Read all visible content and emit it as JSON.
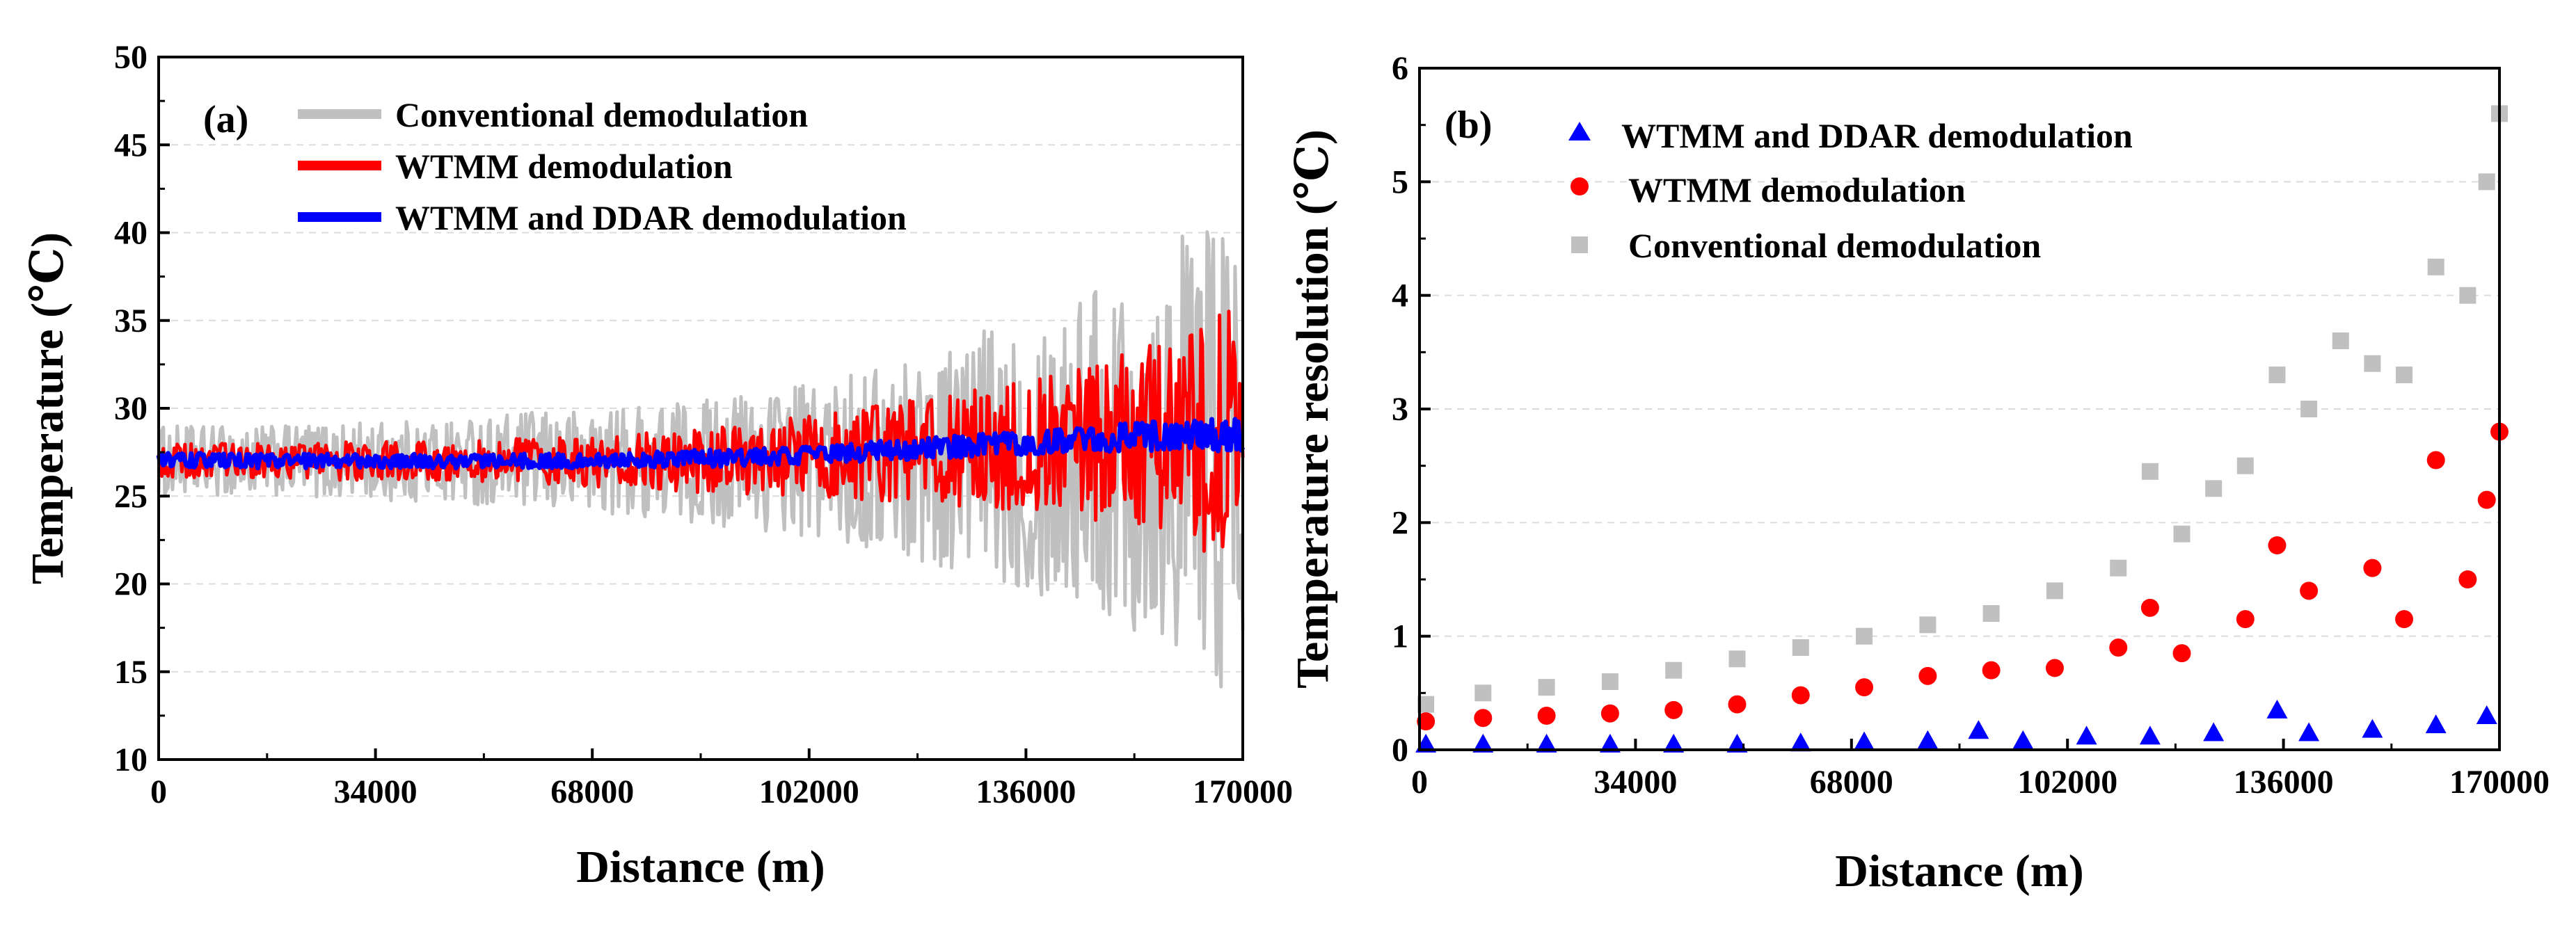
{
  "chart_data": [
    {
      "type": "line",
      "panel_label": "(a)",
      "xlabel": "Distance (m)",
      "ylabel": "Temperature (℃)",
      "xlim": [
        0,
        170000
      ],
      "ylim": [
        10,
        50
      ],
      "x_ticks": [
        "0",
        "34000",
        "68000",
        "102000",
        "136000",
        "170000"
      ],
      "y_ticks": [
        "10",
        "15",
        "20",
        "25",
        "30",
        "35",
        "40",
        "45",
        "50"
      ],
      "x": [
        0,
        10000,
        20000,
        30000,
        40000,
        50000,
        60000,
        70000,
        80000,
        90000,
        100000,
        110000,
        120000,
        130000,
        140000,
        150000,
        160000,
        170000
      ],
      "series": [
        {
          "name": "Conventional demodulation",
          "color": "#c0c0c0",
          "mean": [
            27,
            27,
            27,
            27,
            27,
            27,
            27,
            27,
            27,
            27,
            27,
            27,
            27.2,
            27.5,
            27.6,
            27.8,
            28,
            28
          ],
          "half_range": [
            2,
            2,
            2,
            2.2,
            2.3,
            2.5,
            2.8,
            3,
            3.4,
            3.8,
            4.3,
            5,
            6,
            7.2,
            8.5,
            10,
            12,
            15
          ]
        },
        {
          "name": "WTMM  demodulation",
          "color": "#ff0000",
          "mean": [
            27,
            27,
            27,
            27,
            27,
            27,
            27,
            27,
            27,
            27,
            27.2,
            27.4,
            27.6,
            27.8,
            28,
            28,
            28.3,
            28.5
          ],
          "half_range": [
            1,
            1,
            1,
            1.1,
            1.1,
            1.2,
            1.3,
            1.5,
            1.7,
            2,
            2.3,
            2.6,
            3,
            3.5,
            4,
            5,
            6,
            7.5
          ]
        },
        {
          "name": "WTMM and DDAR demodulation",
          "color": "#0000ff",
          "mean": [
            27.1,
            27,
            27,
            27,
            27,
            27,
            27,
            27,
            27.1,
            27.2,
            27.3,
            27.5,
            27.7,
            27.9,
            28.1,
            28.3,
            28.5,
            28.5
          ],
          "half_range": [
            0.4,
            0.4,
            0.4,
            0.4,
            0.4,
            0.4,
            0.4,
            0.4,
            0.45,
            0.5,
            0.5,
            0.55,
            0.6,
            0.65,
            0.7,
            0.8,
            0.9,
            1
          ]
        }
      ]
    },
    {
      "type": "scatter",
      "panel_label": "(b)",
      "xlabel": "Distance (m)",
      "ylabel": "Temperature resolution (℃)",
      "xlim": [
        0,
        170000
      ],
      "ylim": [
        0,
        6
      ],
      "x_ticks": [
        "0",
        "34000",
        "68000",
        "102000",
        "136000",
        "170000"
      ],
      "y_ticks": [
        "0",
        "1",
        "2",
        "3",
        "4",
        "5",
        "6"
      ],
      "series": [
        {
          "name": "WTMM and DDAR demodulation",
          "color": "#0000ff",
          "marker": "triangle",
          "x": [
            1000,
            10000,
            20000,
            30000,
            40000,
            50000,
            60000,
            70000,
            80000,
            88000,
            95000,
            105000,
            115000,
            125000,
            135000,
            140000,
            150000,
            160000,
            168000
          ],
          "y": [
            0.05,
            0.05,
            0.05,
            0.05,
            0.05,
            0.05,
            0.06,
            0.07,
            0.08,
            0.17,
            0.08,
            0.12,
            0.12,
            0.15,
            0.35,
            0.15,
            0.18,
            0.22,
            0.3
          ]
        },
        {
          "name": "WTMM  demodulation",
          "color": "#ff0000",
          "marker": "circle",
          "x": [
            1000,
            10000,
            20000,
            30000,
            40000,
            50000,
            60000,
            70000,
            80000,
            90000,
            100000,
            110000,
            115000,
            120000,
            130000,
            135000,
            140000,
            150000,
            155000,
            160000,
            165000,
            168000,
            170000
          ],
          "y": [
            0.25,
            0.28,
            0.3,
            0.32,
            0.35,
            0.4,
            0.48,
            0.55,
            0.65,
            0.7,
            0.72,
            0.9,
            1.25,
            0.85,
            1.15,
            1.8,
            1.4,
            1.6,
            1.15,
            2.55,
            1.5,
            2.2,
            2.8
          ]
        },
        {
          "name": "Conventional demodulation",
          "color": "#c0c0c0",
          "marker": "square",
          "x": [
            1000,
            10000,
            20000,
            30000,
            40000,
            50000,
            60000,
            70000,
            80000,
            90000,
            100000,
            110000,
            115000,
            120000,
            125000,
            130000,
            135000,
            140000,
            145000,
            150000,
            155000,
            160000,
            165000,
            168000,
            170000
          ],
          "y": [
            0.4,
            0.5,
            0.55,
            0.6,
            0.7,
            0.8,
            0.9,
            1.0,
            1.1,
            1.2,
            1.4,
            1.6,
            2.45,
            1.9,
            2.3,
            2.5,
            3.3,
            3.0,
            3.6,
            3.4,
            3.3,
            4.25,
            4.0,
            5.0,
            5.6
          ]
        }
      ]
    }
  ]
}
